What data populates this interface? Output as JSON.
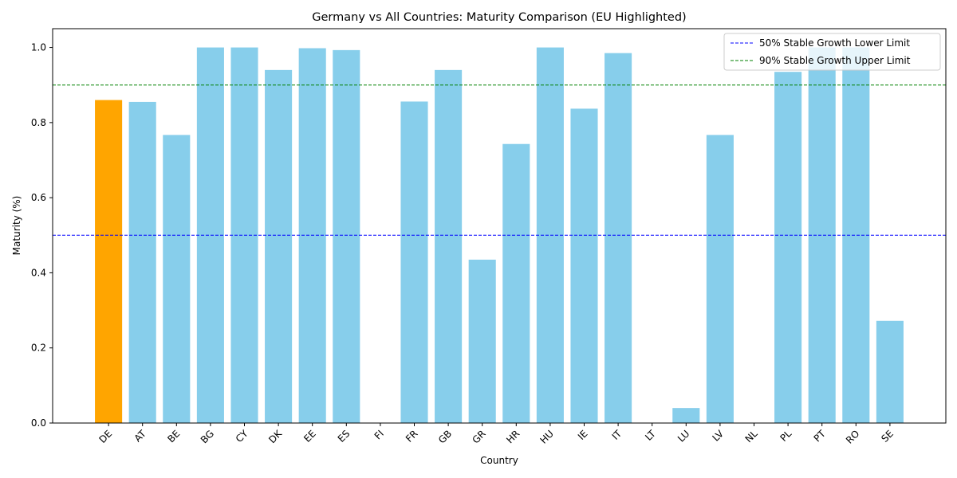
{
  "chart_data": {
    "type": "bar",
    "title": "Germany vs All Countries: Maturity Comparison (EU Highlighted)",
    "xlabel": "Country",
    "ylabel": "Maturity (%)",
    "ylim": [
      0,
      1.05
    ],
    "yticks": [
      0.0,
      0.2,
      0.4,
      0.6,
      0.8,
      1.0
    ],
    "ytick_labels": [
      "0.0",
      "0.2",
      "0.4",
      "0.6",
      "0.8",
      "1.0"
    ],
    "categories": [
      "DE",
      "AT",
      "BE",
      "BG",
      "CY",
      "DK",
      "EE",
      "ES",
      "FI",
      "FR",
      "GB",
      "GR",
      "HR",
      "HU",
      "IE",
      "IT",
      "LT",
      "LU",
      "LV",
      "NL",
      "PL",
      "PT",
      "RO",
      "SE"
    ],
    "values": [
      0.86,
      0.855,
      0.767,
      1.0,
      1.0,
      0.94,
      0.998,
      0.993,
      0.0,
      0.856,
      0.94,
      0.435,
      0.743,
      1.0,
      0.837,
      0.985,
      0.0,
      0.04,
      0.767,
      0.0,
      0.935,
      1.0,
      1.0,
      0.272
    ],
    "highlight_category": "DE",
    "colors": {
      "bar": "#87ceeb",
      "highlight": "#ffa500",
      "lower_line": "#0000ff",
      "upper_line": "#008000"
    },
    "reference_lines": [
      {
        "label": "50% Stable Growth Lower Limit",
        "value": 0.5,
        "color": "#0000ff",
        "style": "dashed"
      },
      {
        "label": "90% Stable Growth Upper Limit",
        "value": 0.9,
        "color": "#008000",
        "style": "dashed"
      }
    ],
    "legend_position": "top-right",
    "grid": false
  }
}
